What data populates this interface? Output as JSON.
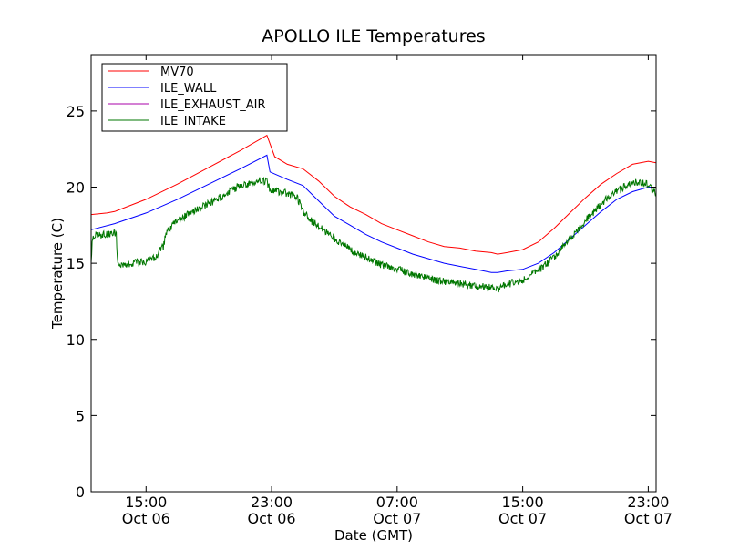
{
  "chart_data": {
    "type": "line",
    "title": "APOLLO ILE Temperatures",
    "xlabel": "Date (GMT)",
    "ylabel": "Temperature (C)",
    "x_unit": "hours since 2012-10-06 00:00 GMT",
    "xlim": [
      11.5,
      47.5
    ],
    "ylim": [
      0,
      28.7
    ],
    "grid": false,
    "legend_position": "top-left",
    "y_ticks": [
      {
        "value": 0,
        "label": "0"
      },
      {
        "value": 5,
        "label": "5"
      },
      {
        "value": 10,
        "label": "10"
      },
      {
        "value": 15,
        "label": "15"
      },
      {
        "value": 20,
        "label": "20"
      },
      {
        "value": 25,
        "label": "25"
      }
    ],
    "x_ticks": [
      {
        "value": 15,
        "time": "15:00",
        "date": "Oct 06"
      },
      {
        "value": 23,
        "time": "23:00",
        "date": "Oct 06"
      },
      {
        "value": 31,
        "time": "07:00",
        "date": "Oct 07"
      },
      {
        "value": 39,
        "time": "15:00",
        "date": "Oct 07"
      },
      {
        "value": 47,
        "time": "23:00",
        "date": "Oct 07"
      }
    ],
    "series": [
      {
        "name": "MV70",
        "color": "#ff0000",
        "noise": 0,
        "points": [
          [
            11.5,
            18.2
          ],
          [
            12.5,
            18.3
          ],
          [
            13,
            18.4
          ],
          [
            15,
            19.2
          ],
          [
            17,
            20.2
          ],
          [
            19,
            21.3
          ],
          [
            21,
            22.4
          ],
          [
            22.7,
            23.4
          ],
          [
            23.2,
            22.0
          ],
          [
            24,
            21.5
          ],
          [
            25,
            21.2
          ],
          [
            26,
            20.4
          ],
          [
            27,
            19.4
          ],
          [
            28,
            18.7
          ],
          [
            29,
            18.2
          ],
          [
            30,
            17.6
          ],
          [
            31,
            17.2
          ],
          [
            32,
            16.8
          ],
          [
            33,
            16.4
          ],
          [
            34,
            16.1
          ],
          [
            35,
            16.0
          ],
          [
            36,
            15.8
          ],
          [
            37,
            15.7
          ],
          [
            37.4,
            15.6
          ],
          [
            38,
            15.7
          ],
          [
            39,
            15.9
          ],
          [
            40,
            16.4
          ],
          [
            41,
            17.3
          ],
          [
            42,
            18.3
          ],
          [
            43,
            19.3
          ],
          [
            44,
            20.2
          ],
          [
            45,
            20.9
          ],
          [
            46,
            21.5
          ],
          [
            47,
            21.7
          ],
          [
            47.5,
            21.6
          ]
        ]
      },
      {
        "name": "ILE_WALL",
        "color": "#0000ff",
        "noise": 0,
        "points": [
          [
            11.5,
            17.2
          ],
          [
            13,
            17.6
          ],
          [
            15,
            18.3
          ],
          [
            17,
            19.2
          ],
          [
            19,
            20.2
          ],
          [
            21,
            21.2
          ],
          [
            22.7,
            22.1
          ],
          [
            22.9,
            21.0
          ],
          [
            24,
            20.5
          ],
          [
            25,
            20.1
          ],
          [
            26,
            19.1
          ],
          [
            27,
            18.1
          ],
          [
            28,
            17.5
          ],
          [
            29,
            16.9
          ],
          [
            30,
            16.4
          ],
          [
            31,
            16.0
          ],
          [
            32,
            15.6
          ],
          [
            33,
            15.3
          ],
          [
            34,
            15.0
          ],
          [
            35,
            14.8
          ],
          [
            36,
            14.6
          ],
          [
            37,
            14.4
          ],
          [
            37.4,
            14.4
          ],
          [
            38,
            14.5
          ],
          [
            39,
            14.6
          ],
          [
            40,
            15.0
          ],
          [
            41,
            15.7
          ],
          [
            42,
            16.6
          ],
          [
            43,
            17.5
          ],
          [
            44,
            18.4
          ],
          [
            45,
            19.2
          ],
          [
            46,
            19.7
          ],
          [
            47,
            20.0
          ],
          [
            47.5,
            20.0
          ]
        ]
      },
      {
        "name": "ILE_EXHAUST_AIR",
        "color": "#aa00aa",
        "noise": 0,
        "points": []
      },
      {
        "name": "ILE_INTAKE",
        "color": "#007700",
        "noise": 0.25,
        "points": [
          [
            11.5,
            15.3
          ],
          [
            11.6,
            16.8
          ],
          [
            13.1,
            17.0
          ],
          [
            13.2,
            14.8
          ],
          [
            14,
            15.0
          ],
          [
            15,
            15.1
          ],
          [
            15.5,
            15.3
          ],
          [
            15.8,
            15.7
          ],
          [
            16.1,
            16.1
          ],
          [
            16.3,
            17.0
          ],
          [
            17,
            17.8
          ],
          [
            18,
            18.4
          ],
          [
            19,
            18.9
          ],
          [
            20,
            19.5
          ],
          [
            21,
            20.1
          ],
          [
            22,
            20.4
          ],
          [
            22.7,
            20.4
          ],
          [
            22.9,
            19.8
          ],
          [
            24,
            19.6
          ],
          [
            24.6,
            19.4
          ],
          [
            25,
            18.4
          ],
          [
            25.5,
            17.8
          ],
          [
            26,
            17.4
          ],
          [
            27,
            16.6
          ],
          [
            28,
            15.9
          ],
          [
            29,
            15.4
          ],
          [
            30,
            14.9
          ],
          [
            31,
            14.6
          ],
          [
            32,
            14.3
          ],
          [
            33,
            14.0
          ],
          [
            34,
            13.8
          ],
          [
            35,
            13.7
          ],
          [
            36,
            13.5
          ],
          [
            37,
            13.4
          ],
          [
            37.4,
            13.3
          ],
          [
            38,
            13.6
          ],
          [
            39,
            13.9
          ],
          [
            40,
            14.5
          ],
          [
            41,
            15.4
          ],
          [
            42,
            16.6
          ],
          [
            43,
            17.8
          ],
          [
            44,
            18.9
          ],
          [
            45,
            19.8
          ],
          [
            46,
            20.3
          ],
          [
            47,
            20.2
          ],
          [
            47.5,
            19.6
          ]
        ]
      }
    ]
  }
}
